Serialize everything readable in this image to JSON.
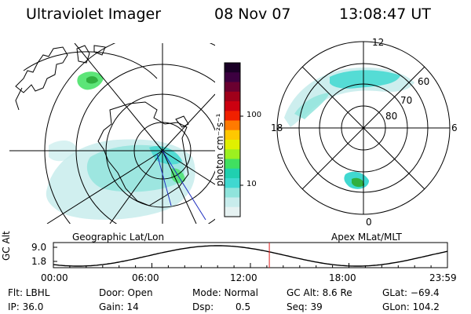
{
  "header": {
    "instrument": "Ultraviolet Imager",
    "date": "08 Nov 07",
    "time": "13:08:47 UT"
  },
  "left_panel": {
    "caption": "Geographic Lat/Lon"
  },
  "right_panel": {
    "caption": "Apex MLat/MLT",
    "mlt_labels": [
      "12",
      "18",
      "6",
      "0"
    ],
    "lat_labels": [
      "60",
      "70",
      "80"
    ]
  },
  "colorbar": {
    "label": "photon cm⁻²s⁻¹",
    "ticks": [
      "100",
      "10"
    ],
    "colors": [
      "#1a0026",
      "#3c0040",
      "#6a0030",
      "#a0001a",
      "#cc0010",
      "#f02000",
      "#ff7a00",
      "#ffc800",
      "#e0f000",
      "#9cf020",
      "#40e060",
      "#20d0b0",
      "#40d8d0",
      "#90e4dc",
      "#c8ecec",
      "#e6f2f2"
    ]
  },
  "altitude_plot": {
    "ylabel": "GC Alt",
    "y_ticks": [
      "9.0",
      "1.8"
    ],
    "x_ticks": [
      "00:00",
      "06:00",
      "12:00",
      "18:00",
      "23:59"
    ],
    "current_marker_hour": 13.15,
    "marker_color": "#e02020"
  },
  "status": {
    "filter": "Flt: LBHL",
    "ip": "IP: 36.0",
    "door": "Door: Open",
    "gain": "Gain: 14",
    "mode": "Mode: Normal",
    "dsp_label": "Dsp:",
    "dsp_value": "0.5",
    "gc_alt": "GC Alt: 8.6 Re",
    "seq": "Seq: 39",
    "glat": "GLat: −69.4",
    "glon": "GLon: 104.2"
  },
  "colors": {
    "aurora_light": "#a8e8e4",
    "aurora_mid": "#40d0c8",
    "aurora_green": "#30b040"
  }
}
